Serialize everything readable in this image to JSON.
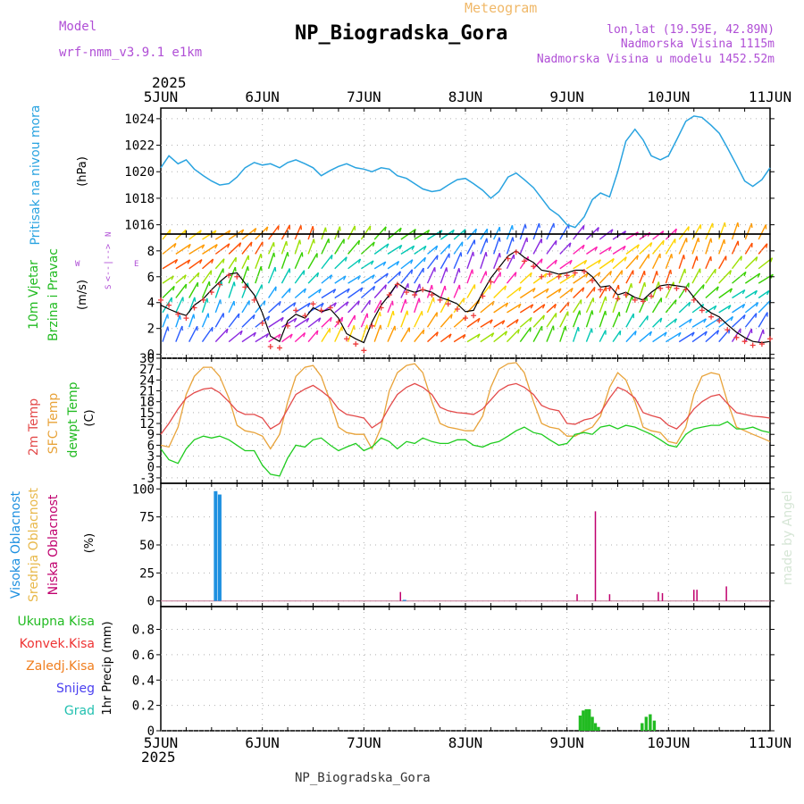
{
  "header": {
    "model_label": "Model",
    "model_name": "wrf-nmm_v3.9.1 e1km",
    "title": "Meteogram",
    "station": "NP_Biogradska_Gora",
    "lonlat": "lon,lat (19.59E, 42.89N)",
    "elev": "Nadmorska Visina 1115m",
    "elev_model": "Nadmorska Visina u modelu 1452.52m",
    "year": "2025",
    "footer_station": "NP_Biogradska_Gora",
    "credit": "made by Angel"
  },
  "colors": {
    "pressure": "#29a3e0",
    "wind_speed": "#000000",
    "gust": "#ee3b3b",
    "temp2m": "#e34a4a",
    "sfc_temp": "#e8a33a",
    "dewpoint": "#1fcc1f",
    "high_cloud": "#1e90e0",
    "mid_cloud": "#e8b84a",
    "low_cloud": "#c0006e",
    "total_precip": "#22bb22",
    "conv_precip": "#ee3333",
    "frz_precip": "#f07e1e",
    "snow": "#4a3ff0",
    "hail": "#22c0b0",
    "label_purple": "#b04fd6",
    "title_orange": "#f0b868"
  },
  "x_axis": {
    "days": [
      "5JUN",
      "6JUN",
      "7JUN",
      "8JUN",
      "9JUN",
      "10JUN",
      "11JUN"
    ],
    "year": "2025"
  },
  "panel_labels": {
    "pressure": {
      "name": "Pritisak na nivou mora",
      "unit": "(hPa)"
    },
    "wind": {
      "name1": "10m Vjetar",
      "name2": "Brzina i Pravac",
      "unit": "(m/s)",
      "compass_w": "W",
      "compass_e": "E",
      "compass_n": "N",
      "compass_s": "S",
      "compass_arrows": "<--|-->"
    },
    "temp": {
      "name1": "2m Temp",
      "name2": "SFC Temp",
      "name3": "dewpt Temp",
      "unit": "(C)"
    },
    "cloud": {
      "name1": "Visoka Oblacnost",
      "name2": "Srednja Oblacnost",
      "name3": "Niska Oblacnost",
      "unit": "(%)"
    },
    "precip": {
      "l1": "Ukupna Kisa",
      "l2": "Konvek.Kisa",
      "l3": "Zaledj.Kisa",
      "l4": "Snijeg",
      "l5": "Grad",
      "unit": "1hr Precip (mm)"
    }
  },
  "chart_data": [
    {
      "type": "line",
      "title": "Pritisak na nivou mora",
      "ylabel": "(hPa)",
      "ylim": [
        1015.3,
        1024.8
      ],
      "yticks": [
        1016,
        1018,
        1020,
        1022,
        1024
      ],
      "x_days": [
        0,
        0.08,
        0.17,
        0.25,
        0.33,
        0.42,
        0.5,
        0.58,
        0.67,
        0.75,
        0.83,
        0.92,
        1.0,
        1.08,
        1.17,
        1.25,
        1.33,
        1.42,
        1.5,
        1.58,
        1.67,
        1.75,
        1.83,
        1.92,
        2.0,
        2.08,
        2.17,
        2.25,
        2.33,
        2.42,
        2.5,
        2.58,
        2.67,
        2.75,
        2.83,
        2.92,
        3.0,
        3.08,
        3.17,
        3.25,
        3.33,
        3.42,
        3.5,
        3.58,
        3.67,
        3.75,
        3.83,
        3.92,
        4.0,
        4.08,
        4.17,
        4.25,
        4.33,
        4.42,
        4.5,
        4.58,
        4.67,
        4.75,
        4.83,
        4.92,
        5.0,
        5.08,
        5.17,
        5.25,
        5.33,
        5.42,
        5.5,
        5.58,
        5.67,
        5.75,
        5.83,
        5.92,
        6.0
      ],
      "series": [
        {
          "values": [
            1020.3,
            1021.2,
            1020.6,
            1020.9,
            1020.2,
            1019.7,
            1019.3,
            1019.0,
            1019.1,
            1019.6,
            1020.3,
            1020.7,
            1020.5,
            1020.6,
            1020.3,
            1020.7,
            1020.9,
            1020.6,
            1020.3,
            1019.7,
            1020.1,
            1020.4,
            1020.6,
            1020.3,
            1020.2,
            1020.0,
            1020.3,
            1020.2,
            1019.7,
            1019.5,
            1019.1,
            1018.7,
            1018.5,
            1018.6,
            1019.0,
            1019.4,
            1019.5,
            1019.1,
            1018.6,
            1018.0,
            1018.5,
            1019.6,
            1019.9,
            1019.4,
            1018.8,
            1018.0,
            1017.2,
            1016.7,
            1016.0,
            1015.8,
            1016.6,
            1017.9,
            1018.4,
            1018.1,
            1020.0,
            1022.3,
            1023.2,
            1022.4,
            1021.2,
            1020.9,
            1021.2,
            1022.4,
            1023.8,
            1024.2,
            1024.1,
            1023.5,
            1022.9,
            1021.8,
            1020.5,
            1019.3,
            1018.9,
            1019.4,
            1020.3
          ]
        }
      ]
    },
    {
      "type": "line",
      "title": "10m Vjetar Brzina i Pravac",
      "ylabel": "(m/s)",
      "ylim": [
        -0.3,
        9.3
      ],
      "yticks": [
        0,
        2,
        4,
        6,
        8
      ],
      "x_days": [
        0,
        0.08,
        0.17,
        0.25,
        0.33,
        0.42,
        0.5,
        0.58,
        0.67,
        0.75,
        0.83,
        0.92,
        1.0,
        1.08,
        1.17,
        1.25,
        1.33,
        1.42,
        1.5,
        1.58,
        1.67,
        1.75,
        1.83,
        1.92,
        2.0,
        2.08,
        2.17,
        2.25,
        2.33,
        2.42,
        2.5,
        2.58,
        2.67,
        2.75,
        2.83,
        2.92,
        3.0,
        3.08,
        3.17,
        3.25,
        3.33,
        3.42,
        3.5,
        3.58,
        3.67,
        3.75,
        3.83,
        3.92,
        4.0,
        4.08,
        4.17,
        4.25,
        4.33,
        4.42,
        4.5,
        4.58,
        4.67,
        4.75,
        4.83,
        4.92,
        5.0,
        5.08,
        5.17,
        5.25,
        5.33,
        5.42,
        5.5,
        5.58,
        5.67,
        5.75,
        5.83,
        5.92,
        6.0
      ],
      "series": [
        {
          "name": "speed",
          "values": [
            3.8,
            3.5,
            3.2,
            3.0,
            3.8,
            4.3,
            5.0,
            5.6,
            6.2,
            6.3,
            5.5,
            4.6,
            3.2,
            1.4,
            1.0,
            2.6,
            3.1,
            2.8,
            3.6,
            3.3,
            3.5,
            2.8,
            1.6,
            1.2,
            0.9,
            2.5,
            3.8,
            4.6,
            5.5,
            5.0,
            4.8,
            5.0,
            4.8,
            4.4,
            4.2,
            3.9,
            3.3,
            3.4,
            4.8,
            5.9,
            6.7,
            7.6,
            8.0,
            7.5,
            7.1,
            6.5,
            6.4,
            6.2,
            6.3,
            6.5,
            6.5,
            6.0,
            5.2,
            5.3,
            4.6,
            4.8,
            4.4,
            4.2,
            4.8,
            5.3,
            5.4,
            5.3,
            5.2,
            4.4,
            3.7,
            3.2,
            2.9,
            2.3,
            1.7,
            1.3,
            1.0,
            0.9,
            1.0
          ]
        },
        {
          "name": "gust",
          "values": [
            4.2,
            3.8,
            3.1,
            2.8,
            3.6,
            4.2,
            4.8,
            5.4,
            6.1,
            6.0,
            5.2,
            4.2,
            2.4,
            0.6,
            0.5,
            2.2,
            3.4,
            3.0,
            3.9,
            3.4,
            3.6,
            2.5,
            1.2,
            0.8,
            0.3,
            2.2,
            3.6,
            4.6,
            5.4,
            4.8,
            4.6,
            5.0,
            4.6,
            4.2,
            3.9,
            3.5,
            2.8,
            3.0,
            4.5,
            5.6,
            6.6,
            7.4,
            7.9,
            7.2,
            6.8,
            6.0,
            6.2,
            6.0,
            6.1,
            6.3,
            6.4,
            5.7,
            5.0,
            5.1,
            4.3,
            4.6,
            4.2,
            4.1,
            4.5,
            5.1,
            5.2,
            5.1,
            5.0,
            4.2,
            3.4,
            2.9,
            2.6,
            1.9,
            1.3,
            1.0,
            0.7,
            0.8,
            1.2
          ]
        }
      ]
    },
    {
      "type": "line",
      "title": "2m Temp / SFC Temp / dewpt Temp",
      "ylabel": "(C)",
      "ylim": [
        -4.5,
        30
      ],
      "yticks": [
        -3,
        0,
        3,
        6,
        9,
        12,
        15,
        18,
        21,
        24,
        27,
        30
      ],
      "x_days": [
        0,
        0.08,
        0.17,
        0.25,
        0.33,
        0.42,
        0.5,
        0.58,
        0.67,
        0.75,
        0.83,
        0.92,
        1.0,
        1.08,
        1.17,
        1.25,
        1.33,
        1.42,
        1.5,
        1.58,
        1.67,
        1.75,
        1.83,
        1.92,
        2.0,
        2.08,
        2.17,
        2.25,
        2.33,
        2.42,
        2.5,
        2.58,
        2.67,
        2.75,
        2.83,
        2.92,
        3.0,
        3.08,
        3.17,
        3.25,
        3.33,
        3.42,
        3.5,
        3.58,
        3.67,
        3.75,
        3.83,
        3.92,
        4.0,
        4.08,
        4.17,
        4.25,
        4.33,
        4.42,
        4.5,
        4.58,
        4.67,
        4.75,
        4.83,
        4.92,
        5.0,
        5.08,
        5.17,
        5.25,
        5.33,
        5.42,
        5.5,
        5.58,
        5.67,
        5.75,
        5.83,
        5.92,
        6.0
      ],
      "series": [
        {
          "name": "2m Temp",
          "values": [
            9,
            12,
            16,
            19,
            20.5,
            21.5,
            21.8,
            20.5,
            18,
            15.5,
            14.5,
            14.5,
            13.5,
            10.5,
            12,
            16,
            20,
            21.5,
            22.5,
            21,
            19,
            16,
            14.5,
            14,
            13.5,
            10.8,
            12.5,
            16.5,
            20,
            22,
            23,
            22,
            20,
            16.5,
            15.5,
            15,
            14.8,
            14.5,
            16,
            18.5,
            21,
            22.5,
            23,
            22,
            20,
            17,
            16,
            15.5,
            12,
            11.8,
            13,
            13.5,
            15,
            19,
            22,
            21,
            19,
            15,
            14.2,
            13.5,
            11.5,
            10.5,
            13,
            16,
            18,
            19.5,
            20,
            17.5,
            15,
            14.5,
            14,
            13.8,
            13.5
          ]
        },
        {
          "name": "SFC Temp",
          "values": [
            6,
            5.5,
            11,
            20,
            25,
            27.5,
            27.5,
            25,
            19,
            11.5,
            10,
            9.5,
            8.5,
            5,
            9,
            18,
            25,
            27.5,
            28,
            25,
            18,
            11,
            9.5,
            9,
            9,
            5,
            11,
            21,
            26,
            28,
            28.5,
            26,
            18,
            12,
            11,
            10.5,
            10,
            10,
            14,
            22,
            27,
            28.5,
            28.8,
            26,
            18,
            12,
            11,
            10.5,
            8.5,
            8.5,
            10,
            11,
            14,
            22,
            26,
            24,
            18,
            11,
            10,
            9.5,
            7,
            6.5,
            11,
            20,
            25,
            26,
            25.5,
            18,
            11,
            10,
            9,
            8,
            7
          ]
        },
        {
          "name": "dewpt Temp",
          "values": [
            5,
            2,
            1,
            5,
            7.5,
            8.5,
            8,
            8.5,
            7.5,
            6,
            4.5,
            4.5,
            0.5,
            -2,
            -2.5,
            2.5,
            6,
            5.5,
            7.5,
            8,
            6,
            4.5,
            5.5,
            6.5,
            4.5,
            5.5,
            8,
            7,
            5,
            7,
            6.5,
            8,
            7,
            6.5,
            6.5,
            7.5,
            7.5,
            6,
            5.5,
            6.5,
            7,
            8.5,
            10,
            11,
            9.5,
            9,
            7.5,
            6,
            6.5,
            9,
            9.5,
            9,
            11,
            11.5,
            10.5,
            11.5,
            11,
            10,
            9,
            7.5,
            6,
            5.5,
            9,
            10.5,
            11,
            11.5,
            11.5,
            12.5,
            10.5,
            10.5,
            11,
            10,
            9.5
          ]
        }
      ]
    },
    {
      "type": "bar",
      "title": "Visoka / Srednja / Niska Oblacnost",
      "ylabel": "(%)",
      "ylim": [
        -5,
        105
      ],
      "yticks": [
        0,
        25,
        50,
        75,
        100
      ],
      "series": [
        {
          "name": "Visoka Oblacnost",
          "x_days": [
            0.54,
            0.58,
            2.4
          ],
          "values": [
            98,
            95,
            1
          ]
        },
        {
          "name": "Niska Oblacnost",
          "x_days": [
            2.36,
            4.1,
            4.28,
            4.42,
            4.9,
            4.94,
            5.25,
            5.28,
            5.57
          ],
          "values": [
            8,
            6,
            80,
            6,
            8,
            7,
            10,
            10,
            13
          ]
        }
      ]
    },
    {
      "type": "bar",
      "title": "1hr Precip",
      "ylabel": "1hr Precip (mm)",
      "ylim": [
        0,
        0.98
      ],
      "yticks": [
        0,
        0.2,
        0.4,
        0.6,
        0.8
      ],
      "series": [
        {
          "name": "Ukupna Kisa",
          "x_days": [
            4.13,
            4.16,
            4.19,
            4.22,
            4.25,
            4.28,
            4.31,
            4.74,
            4.78,
            4.82,
            4.86
          ],
          "values": [
            0.12,
            0.16,
            0.17,
            0.17,
            0.11,
            0.06,
            0.03,
            0.06,
            0.11,
            0.13,
            0.08
          ]
        }
      ]
    }
  ]
}
